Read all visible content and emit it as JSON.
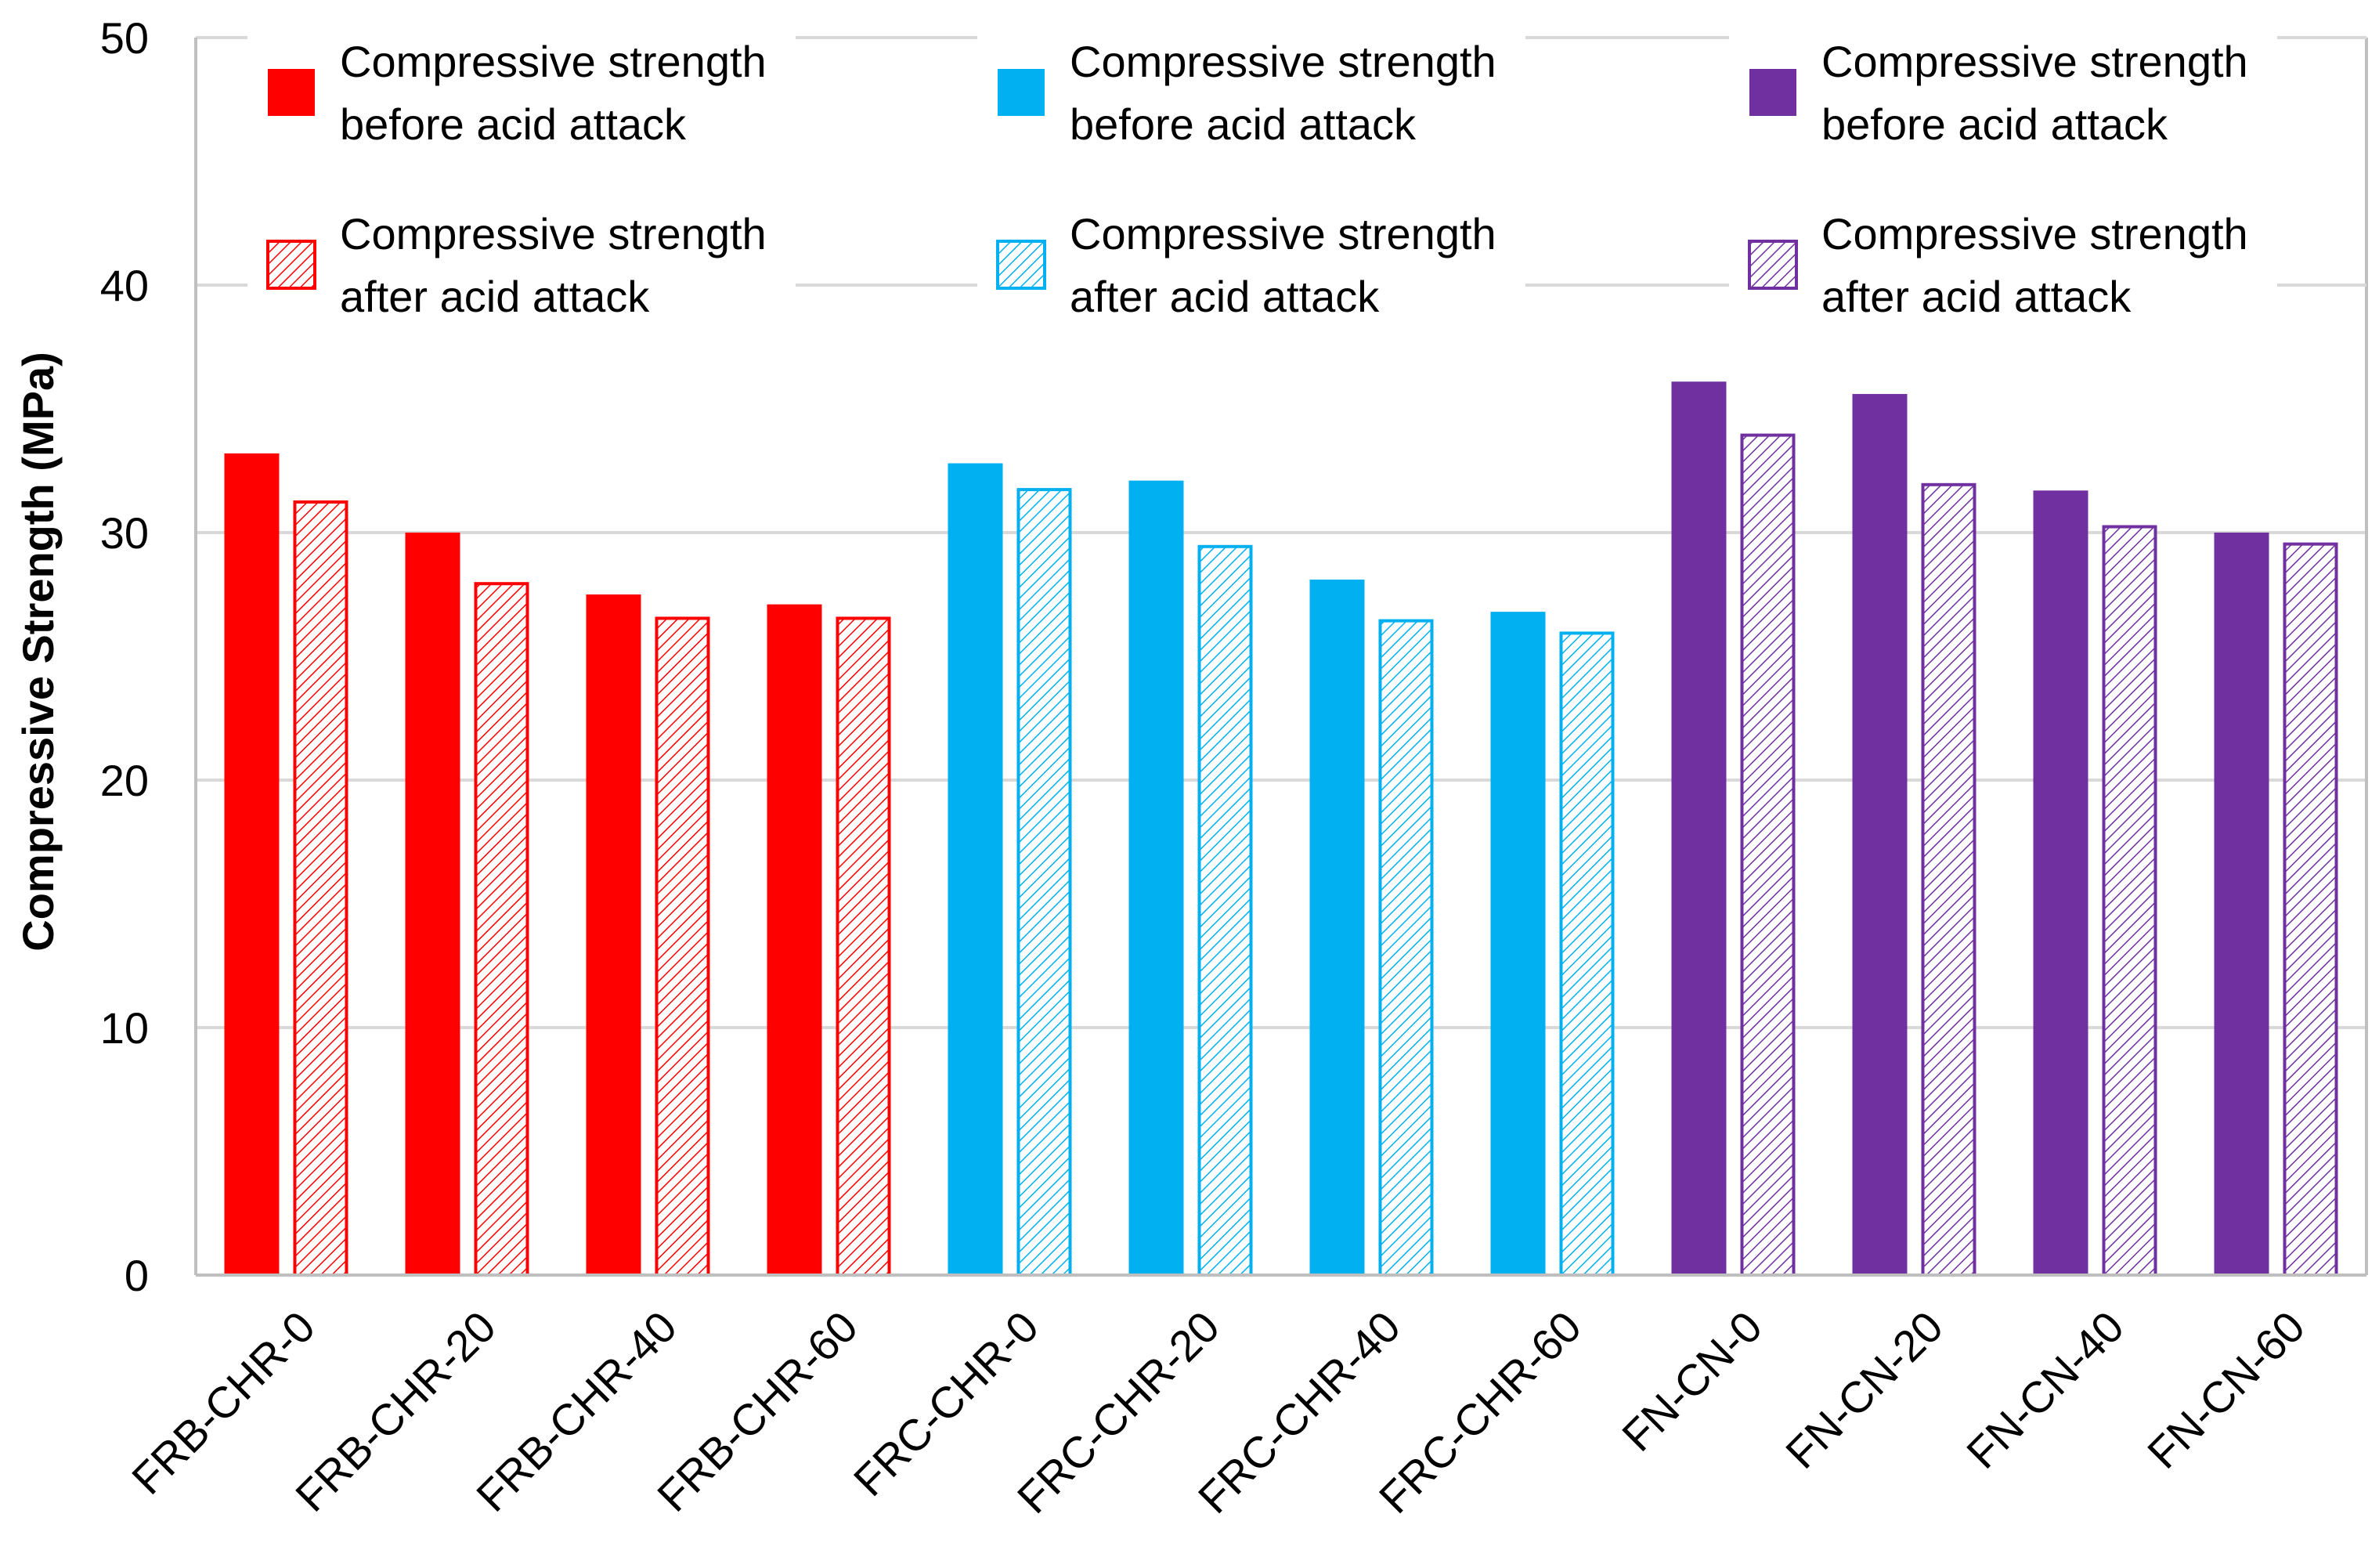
{
  "chart_data": {
    "type": "bar",
    "title": "",
    "xlabel": "",
    "ylabel": "Compressive Strength (MPa)",
    "ylim": [
      0,
      50
    ],
    "yticks": [
      "0",
      "10",
      "20",
      "30",
      "40",
      "50"
    ],
    "grid": true,
    "categories": [
      "FRB-CHR-0",
      "FRB-CHR-20",
      "FRB-CHR-40",
      "FRB-CHR-60",
      "FRC-CHR-0",
      "FRC-CHR-20",
      "FRC-CHR-40",
      "FRC-CHR-60",
      "FN-CN-0",
      "FN-CN-20",
      "FN-CN-40",
      "FN-CN-60"
    ],
    "series": [
      {
        "name": "Compressive strength before acid attack",
        "style": "solid",
        "values": [
          33.2,
          30.0,
          27.5,
          27.1,
          32.8,
          32.1,
          28.1,
          26.8,
          36.1,
          35.6,
          31.7,
          30.0
        ]
      },
      {
        "name": "Compressive strength after acid attack",
        "style": "hatched",
        "values": [
          31.3,
          28.0,
          26.6,
          26.6,
          31.8,
          29.5,
          26.5,
          26.0,
          34.0,
          32.0,
          30.3,
          29.6
        ]
      }
    ],
    "group_colors": [
      "#ff0000",
      "#00b0f0",
      "#7030a0"
    ],
    "legend": {
      "placement": "top",
      "entries": [
        {
          "line1": "Compressive strength",
          "line2": "before acid attack",
          "style": "solid",
          "color": "#ff0000"
        },
        {
          "line1": "Compressive strength",
          "line2": "after acid attack",
          "style": "hatched",
          "color": "#ff0000"
        },
        {
          "line1": "Compressive strength",
          "line2": "before acid attack",
          "style": "solid",
          "color": "#00b0f0"
        },
        {
          "line1": "Compressive strength",
          "line2": "after acid attack",
          "style": "hatched",
          "color": "#00b0f0"
        },
        {
          "line1": "Compressive strength",
          "line2": "before acid attack",
          "style": "solid",
          "color": "#7030a0"
        },
        {
          "line1": "Compressive strength",
          "line2": "after acid attack",
          "style": "hatched",
          "color": "#7030a0"
        }
      ]
    }
  }
}
